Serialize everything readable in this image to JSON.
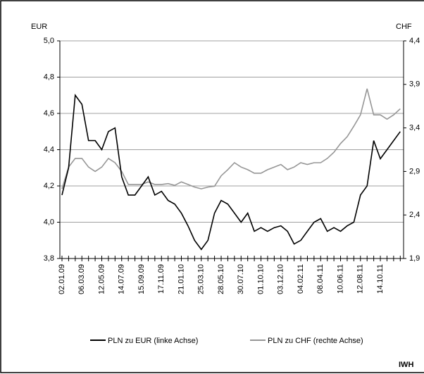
{
  "chart_data": {
    "type": "line",
    "categories": [
      "02.01.09",
      null,
      null,
      "06.03.09",
      null,
      null,
      "12.05.09",
      null,
      null,
      "14.07.09",
      null,
      null,
      "15.09.09",
      null,
      null,
      "17.11.09",
      null,
      null,
      "21.01.10",
      null,
      null,
      "25.03.10",
      null,
      null,
      "28.05.10",
      null,
      null,
      "30.07.10",
      null,
      null,
      "01.10.10",
      null,
      null,
      "03.12.10",
      null,
      null,
      "04.02.11",
      null,
      null,
      "08.04.11",
      null,
      null,
      "10.06.11",
      null,
      null,
      "12.08.11",
      null,
      null,
      "14.10.11",
      null,
      null,
      null
    ],
    "series": [
      {
        "name": "PLN zu EUR (linke Achse)",
        "color": "#000000",
        "axis": "y",
        "values": [
          4.15,
          4.3,
          4.7,
          4.65,
          4.45,
          4.45,
          4.4,
          4.5,
          4.52,
          4.25,
          4.15,
          4.15,
          4.2,
          4.25,
          4.15,
          4.17,
          4.12,
          4.1,
          4.05,
          3.98,
          3.9,
          3.85,
          3.9,
          4.05,
          4.12,
          4.1,
          4.05,
          4.0,
          4.05,
          3.95,
          3.97,
          3.95,
          3.97,
          3.98,
          3.95,
          3.88,
          3.9,
          3.95,
          4.0,
          4.02,
          3.95,
          3.97,
          3.95,
          3.98,
          4.0,
          4.15,
          4.2,
          4.45,
          4.35,
          4.4,
          4.45,
          4.5
        ]
      },
      {
        "name": "PLN zu CHF (rechte Achse)",
        "color": "#969696",
        "axis": "y2",
        "values": [
          2.7,
          2.95,
          3.05,
          3.05,
          2.95,
          2.9,
          2.95,
          3.05,
          3.0,
          2.9,
          2.75,
          2.75,
          2.75,
          2.78,
          2.75,
          2.75,
          2.76,
          2.74,
          2.78,
          2.75,
          2.72,
          2.7,
          2.72,
          2.73,
          2.85,
          2.92,
          3.0,
          2.95,
          2.92,
          2.88,
          2.88,
          2.92,
          2.95,
          2.98,
          2.92,
          2.95,
          3.0,
          2.98,
          3.0,
          3.0,
          3.05,
          3.12,
          3.22,
          3.3,
          3.42,
          3.55,
          3.85,
          3.55,
          3.55,
          3.5,
          3.55,
          3.62
        ]
      }
    ],
    "y_label": "EUR",
    "y2_label": "CHF",
    "ylim": [
      3.8,
      5.0
    ],
    "yticks": [
      {
        "value": 3.8,
        "label": "3,8"
      },
      {
        "value": 4.0,
        "label": "4,0"
      },
      {
        "value": 4.2,
        "label": "4,2"
      },
      {
        "value": 4.4,
        "label": "4,4"
      },
      {
        "value": 4.6,
        "label": "4,6"
      },
      {
        "value": 4.8,
        "label": "4,8"
      },
      {
        "value": 5.0,
        "label": "5,0"
      }
    ],
    "y2lim": [
      1.9,
      4.4
    ],
    "y2ticks": [
      {
        "value": 1.9,
        "label": "1,9"
      },
      {
        "value": 2.4,
        "label": "2,4"
      },
      {
        "value": 2.9,
        "label": "2,9"
      },
      {
        "value": 3.4,
        "label": "3,4"
      },
      {
        "value": 3.9,
        "label": "3,9"
      },
      {
        "value": 4.4,
        "label": "4,4"
      }
    ],
    "grid": true,
    "source": "IWH"
  }
}
